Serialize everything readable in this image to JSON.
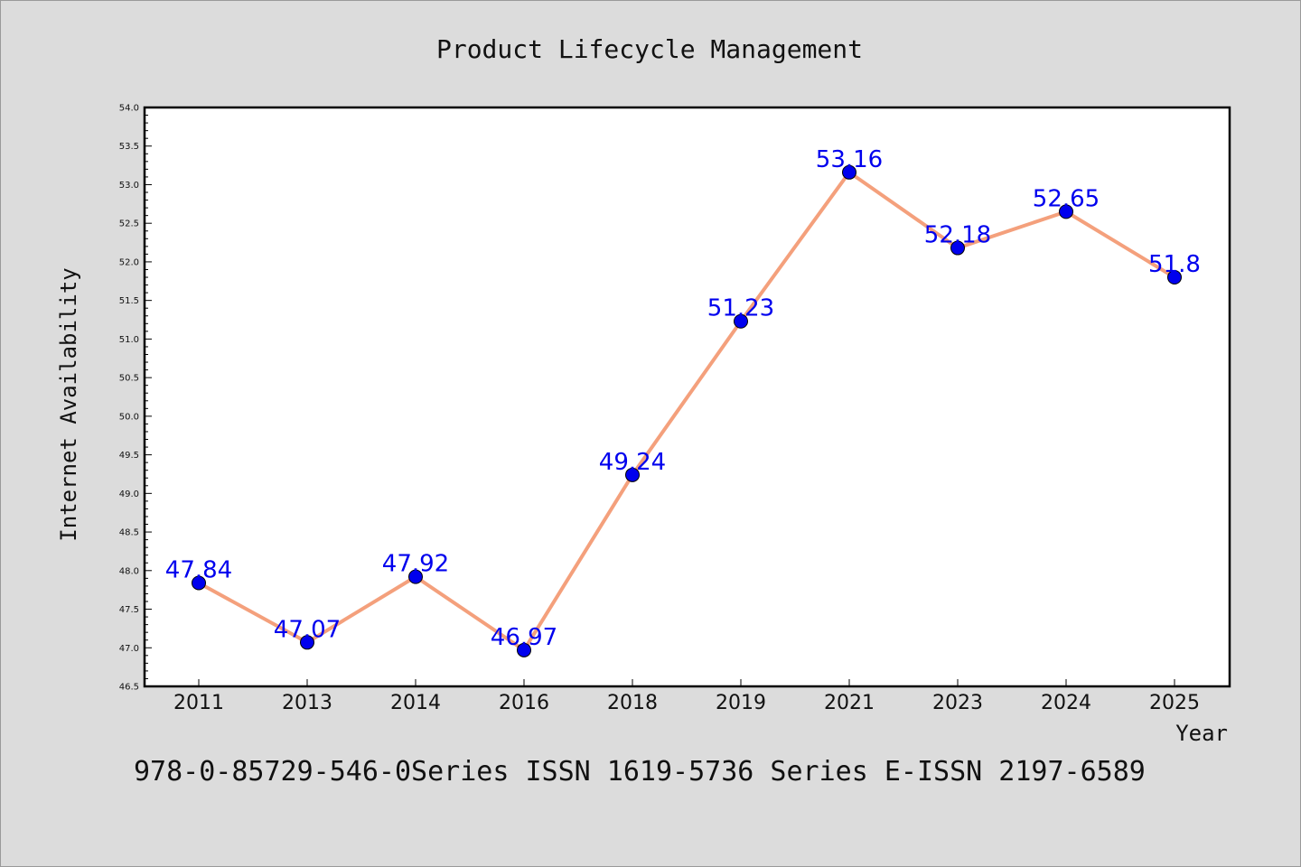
{
  "chart_data": {
    "type": "line",
    "title": "Product Lifecycle Management",
    "xlabel": "Year",
    "ylabel": "Internet Availability",
    "categories": [
      "2011",
      "2013",
      "2014",
      "2016",
      "2018",
      "2019",
      "2021",
      "2023",
      "2024",
      "2025"
    ],
    "series": [
      {
        "values": [
          47.84,
          47.07,
          47.92,
          46.97,
          49.24,
          51.23,
          53.16,
          52.18,
          52.65,
          51.8
        ],
        "labels": [
          "47.84",
          "47.07",
          "47.92",
          "46.97",
          "49.24",
          "51.23",
          "53.16",
          "52.18",
          "52.65",
          "51.8"
        ],
        "line_color": "#f4a07c",
        "marker_color": "#0000ee",
        "label_color": "#0000ee"
      }
    ],
    "ylim": [
      46.5,
      54.0
    ],
    "yticks": [
      "46.5",
      "47.0",
      "47.5",
      "48.0",
      "48.5",
      "49.0",
      "49.5",
      "50.0",
      "50.5",
      "51.0",
      "51.5",
      "52.0",
      "52.5",
      "53.0",
      "53.5",
      "54.0"
    ],
    "grid": false,
    "legend": false
  },
  "footer": {
    "text": "978-0-85729-546-0Series ISSN 1619-5736 Series E-ISSN 2197-6589"
  },
  "colors": {
    "background": "#dcdcdc",
    "plot_background": "#ffffff"
  }
}
